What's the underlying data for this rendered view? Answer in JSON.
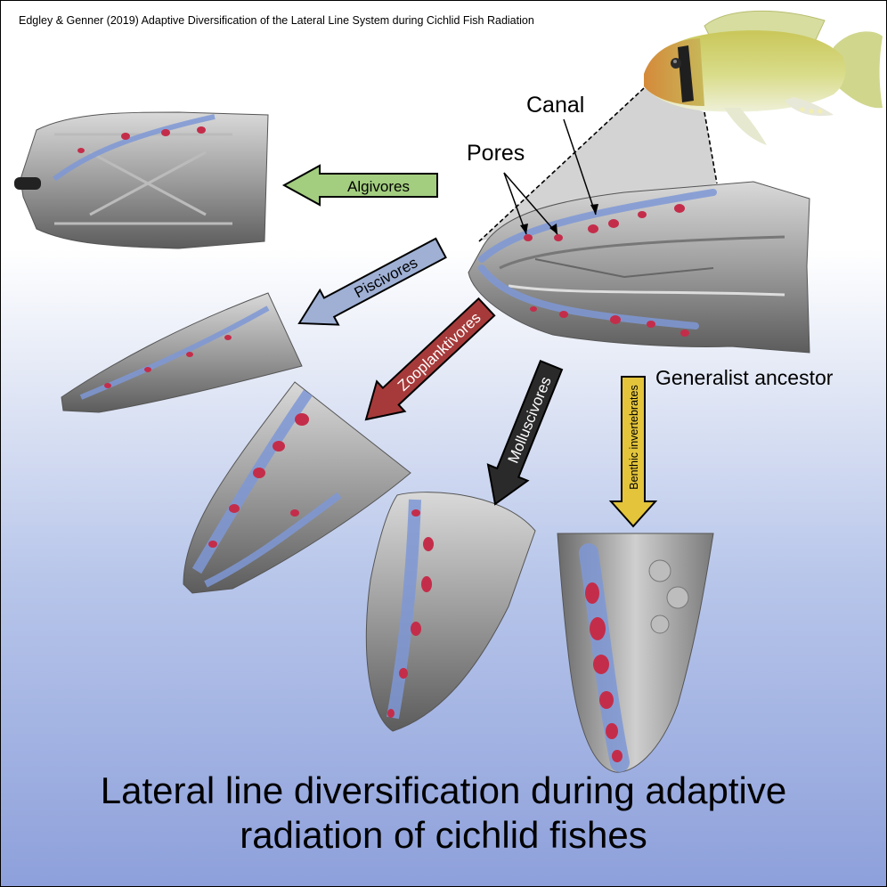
{
  "citation": "Edgley & Genner (2019) Adaptive Diversification of the Lateral Line System during Cichlid Fish Radiation",
  "labels": {
    "canal": "Canal",
    "pores": "Pores",
    "ancestor": "Generalist ancestor"
  },
  "arrows": {
    "algivores": {
      "label": "Algivores",
      "color": "#a3cd7f"
    },
    "piscivores": {
      "label": "Piscivores",
      "color": "#9fb0d4"
    },
    "zooplanktivores": {
      "label": "Zooplanktivores",
      "color": "#a63a3a",
      "text_color": "#ffffff"
    },
    "molluscivores": {
      "label": "Molluscivores",
      "color": "#2a2a2a",
      "text_color": "#ffffff"
    },
    "benthic": {
      "label": "Benthic invertebrates",
      "color": "#e3c43b"
    }
  },
  "title": {
    "line1": "Lateral line diversification during adaptive",
    "line2": "radiation of cichlid fishes"
  },
  "colors": {
    "canal": "#7e98d6",
    "pore": "#c42d4a",
    "bone": "#9a9a9a"
  }
}
